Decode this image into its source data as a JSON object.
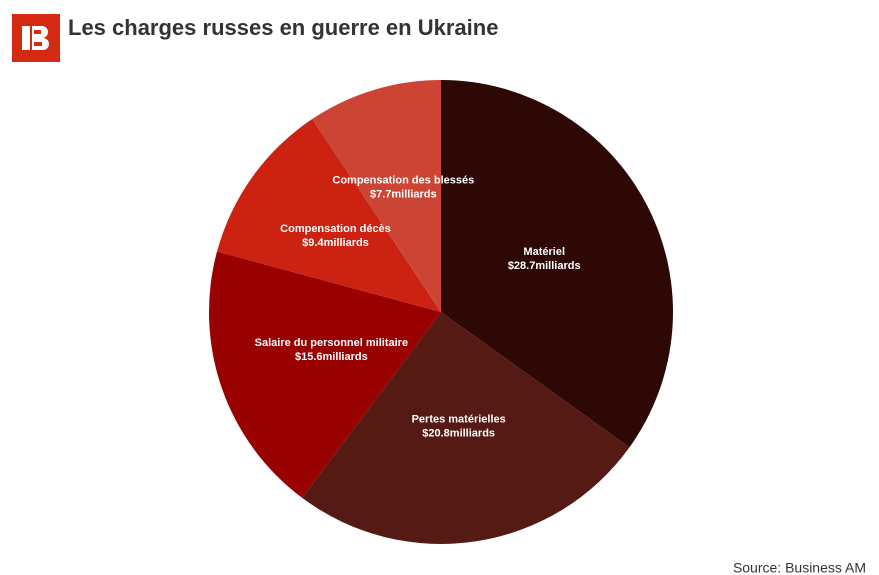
{
  "chart_data": {
    "type": "pie",
    "title": "Les charges russes en guerre en Ukraine",
    "source": "Source: Business AM",
    "categories": [
      "Matériel",
      "Pertes matérielles",
      "Salaire du personnel militaire",
      "Compensation décès",
      "Compensation des blessés"
    ],
    "values": [
      28.7,
      20.8,
      15.6,
      9.4,
      7.7
    ],
    "value_labels": [
      "$28.7milliards",
      "$20.8milliards",
      "$15.6milliards",
      "$9.4milliards",
      "$7.7milliards"
    ],
    "colors": [
      "#2d0804",
      "#561a14",
      "#990000",
      "#cc2211",
      "#cc4433"
    ]
  }
}
